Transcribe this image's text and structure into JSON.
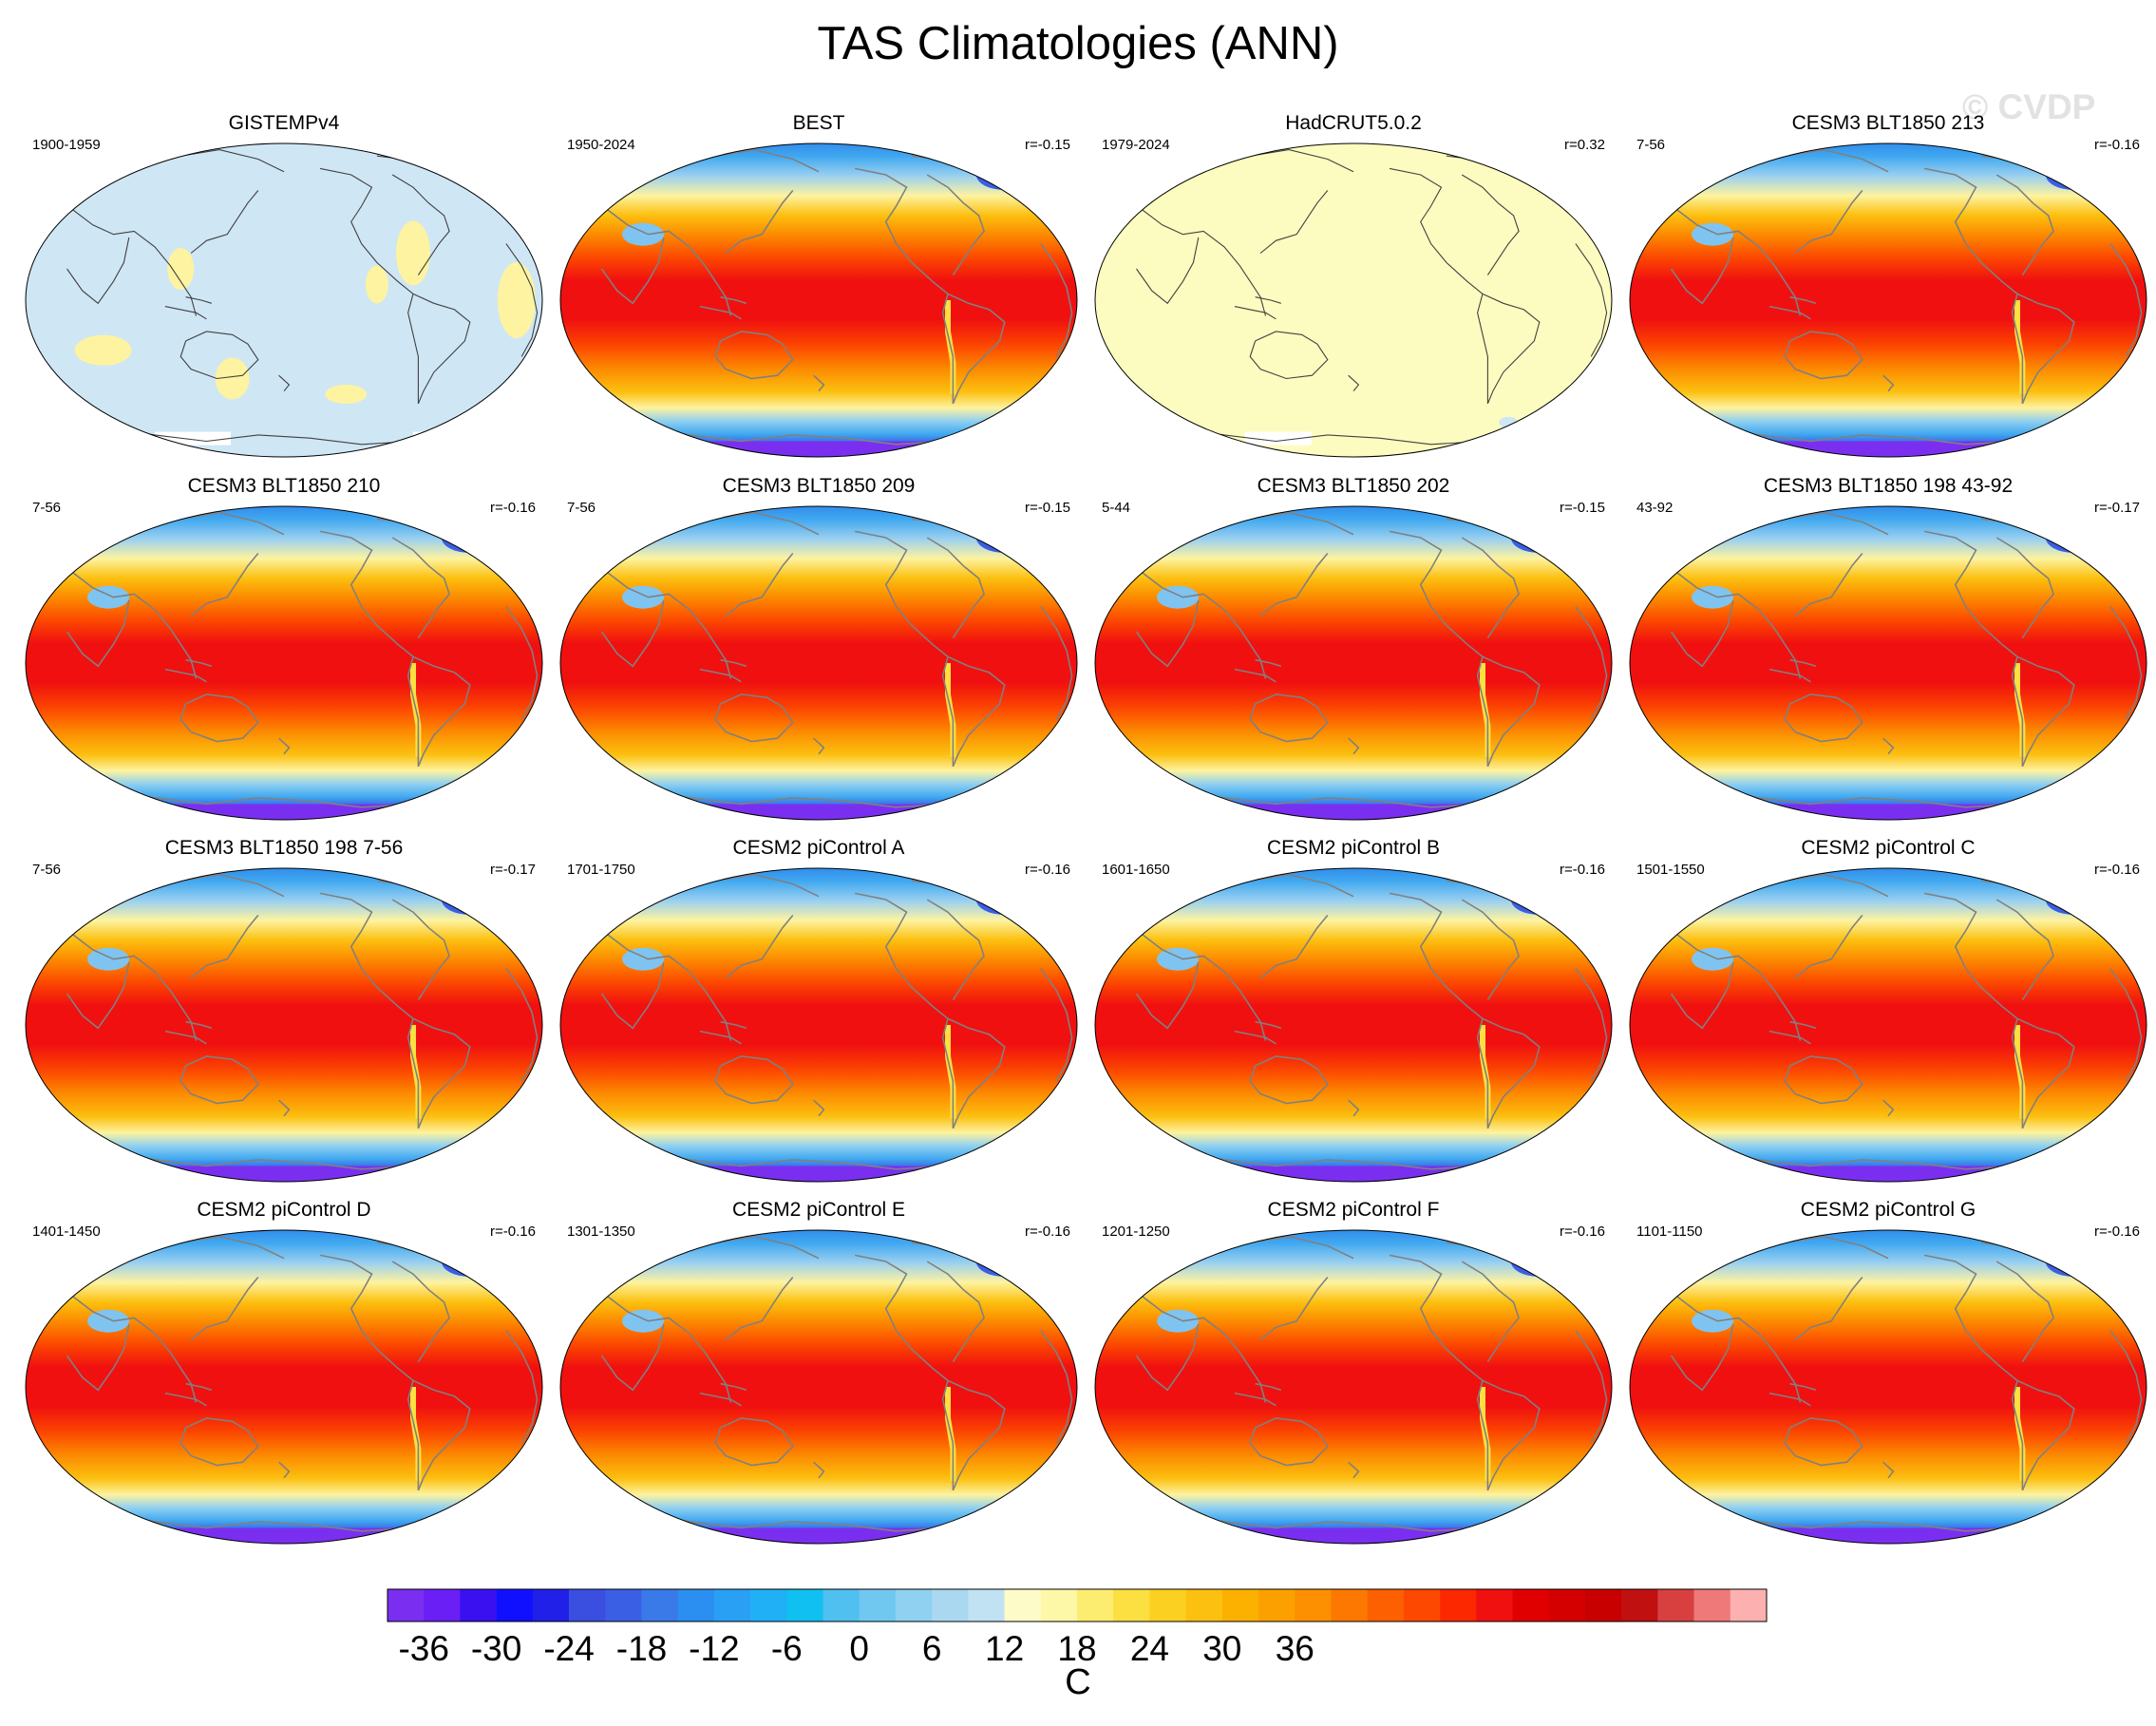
{
  "title": "TAS Climatologies (ANN)",
  "watermark": "© CVDP",
  "colorbar": {
    "unit": "C",
    "tick_labels": [
      "-36",
      "-30",
      "-24",
      "-18",
      "-12",
      "-6",
      "0",
      "6",
      "12",
      "18",
      "24",
      "30",
      "36"
    ],
    "tick_values": [
      -36,
      -30,
      -24,
      -18,
      -12,
      -6,
      0,
      6,
      12,
      18,
      24,
      30,
      36
    ],
    "levels_step": 3,
    "levels_min": -40,
    "levels_max": 40,
    "colors": [
      "#7a2ff0",
      "#6a1ff5",
      "#3a10f0",
      "#1010ff",
      "#2020e8",
      "#3a4fe0",
      "#3a5fe5",
      "#3a7ae8",
      "#2a8ff0",
      "#2aa0f5",
      "#1fb0f5",
      "#10c0f0",
      "#50c0f0",
      "#70c8f0",
      "#90d0f0",
      "#aad8f0",
      "#c0e2f2",
      "#fdfcc8",
      "#fdf7a8",
      "#fcec70",
      "#fcdf40",
      "#fcd020",
      "#fcc010",
      "#fcb000",
      "#fca000",
      "#fc9000",
      "#fc7800",
      "#fc6000",
      "#fc4800",
      "#fc2800",
      "#f01010",
      "#e00000",
      "#d40000",
      "#c80000",
      "#c01010",
      "#d84040",
      "#ef7878",
      "#fcb0b0"
    ]
  },
  "panels": [
    {
      "title": "GISTEMPv4",
      "period": "1900-1959",
      "corr": "",
      "style": "bias"
    },
    {
      "title": "BEST",
      "period": "1950-2024",
      "corr": "r=-0.15",
      "style": "full"
    },
    {
      "title": "HadCRUT5.0.2",
      "period": "1979-2024",
      "corr": "r=0.32",
      "style": "bias2"
    },
    {
      "title": "CESM3 BLT1850 213",
      "period": "7-56",
      "corr": "r=-0.16",
      "style": "full"
    },
    {
      "title": "CESM3 BLT1850 210",
      "period": "7-56",
      "corr": "r=-0.16",
      "style": "full"
    },
    {
      "title": "CESM3 BLT1850 209",
      "period": "7-56",
      "corr": "r=-0.15",
      "style": "full"
    },
    {
      "title": "CESM3 BLT1850 202",
      "period": "5-44",
      "corr": "r=-0.15",
      "style": "full"
    },
    {
      "title": "CESM3 BLT1850 198 43-92",
      "period": "43-92",
      "corr": "r=-0.17",
      "style": "full"
    },
    {
      "title": "CESM3 BLT1850 198 7-56",
      "period": "7-56",
      "corr": "r=-0.17",
      "style": "full"
    },
    {
      "title": "CESM2 piControl A",
      "period": "1701-1750",
      "corr": "r=-0.16",
      "style": "full"
    },
    {
      "title": "CESM2 piControl B",
      "period": "1601-1650",
      "corr": "r=-0.16",
      "style": "full"
    },
    {
      "title": "CESM2 piControl C",
      "period": "1501-1550",
      "corr": "r=-0.16",
      "style": "full"
    },
    {
      "title": "CESM2 piControl D",
      "period": "1401-1450",
      "corr": "r=-0.16",
      "style": "full"
    },
    {
      "title": "CESM2 piControl E",
      "period": "1301-1350",
      "corr": "r=-0.16",
      "style": "full"
    },
    {
      "title": "CESM2 piControl F",
      "period": "1201-1250",
      "corr": "r=-0.16",
      "style": "full"
    },
    {
      "title": "CESM2 piControl G",
      "period": "1101-1150",
      "corr": "r=-0.16",
      "style": "full"
    }
  ]
}
